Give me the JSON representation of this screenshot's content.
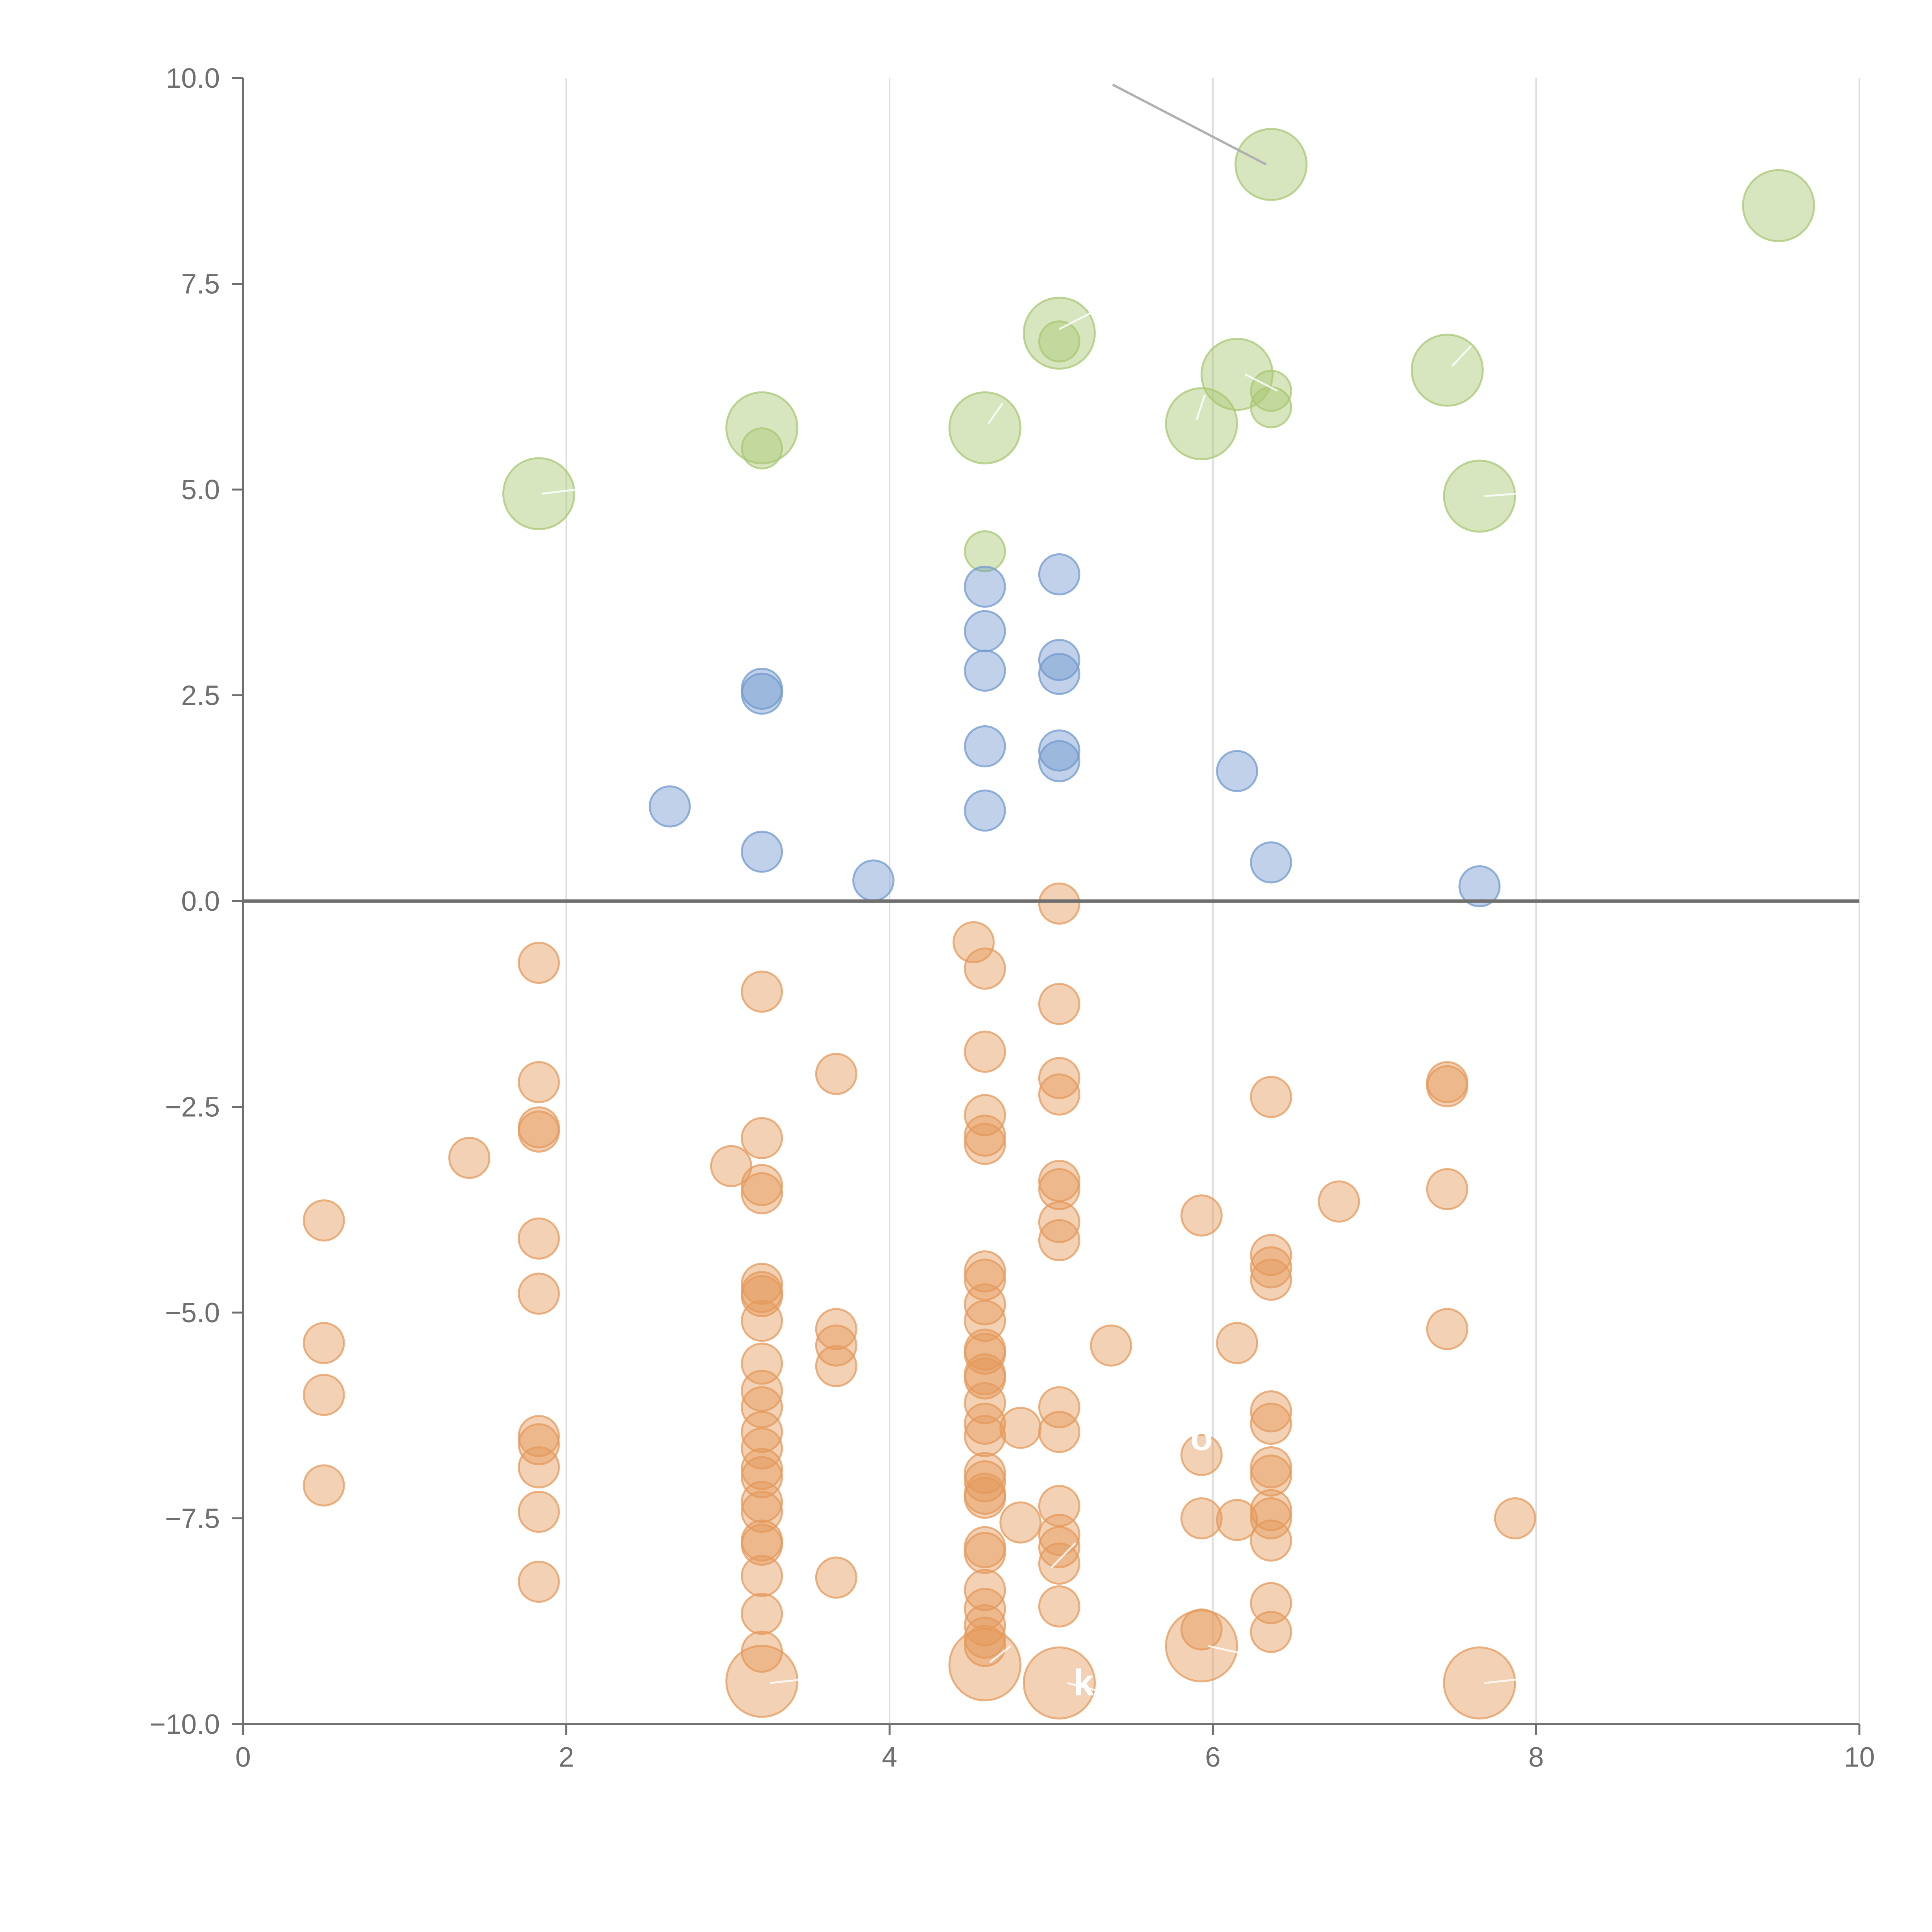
{
  "chart_data": {
    "type": "scatter",
    "title": "",
    "xlabel": "",
    "ylabel": "",
    "xlim": [
      0,
      10
    ],
    "ylim": [
      -10,
      10
    ],
    "x_ticks": [
      "0",
      "2",
      "4",
      "6",
      "8",
      "10"
    ],
    "y_ticks": [
      "10.0",
      "7.5",
      "5.0",
      "2.5",
      "0.0",
      "−2.5",
      "−5.0",
      "−7.5",
      "−10.0"
    ],
    "grid": "vertical",
    "zero_line": 0,
    "colors": {
      "green": "#a9c774",
      "blue": "#7399cf",
      "orange": "#e59a5c",
      "axis": "#6f6f6f",
      "grid": "#dddddd",
      "connector": "#b0b0b0"
    },
    "series": [
      {
        "name": "green",
        "color": "#a9c774",
        "points": [
          {
            "x": 1.83,
            "y": 4.95,
            "s": "large"
          },
          {
            "x": 3.21,
            "y": 5.75,
            "s": "large"
          },
          {
            "x": 3.21,
            "y": 5.5,
            "s": "small"
          },
          {
            "x": 4.59,
            "y": 5.75,
            "s": "large"
          },
          {
            "x": 4.59,
            "y": 4.25,
            "s": "small"
          },
          {
            "x": 5.05,
            "y": 6.9,
            "s": "large"
          },
          {
            "x": 5.05,
            "y": 6.8,
            "s": "small"
          },
          {
            "x": 5.93,
            "y": 5.8,
            "s": "large"
          },
          {
            "x": 6.15,
            "y": 6.4,
            "s": "large"
          },
          {
            "x": 6.36,
            "y": 8.95,
            "s": "large"
          },
          {
            "x": 6.36,
            "y": 6.2,
            "s": "small"
          },
          {
            "x": 6.36,
            "y": 6.0,
            "s": "small"
          },
          {
            "x": 7.45,
            "y": 6.45,
            "s": "large"
          },
          {
            "x": 7.65,
            "y": 4.92,
            "s": "large"
          },
          {
            "x": 9.5,
            "y": 8.45,
            "s": "large"
          }
        ]
      },
      {
        "name": "blue",
        "color": "#7399cf",
        "points": [
          {
            "x": 2.64,
            "y": 1.15,
            "s": "small"
          },
          {
            "x": 3.21,
            "y": 2.58,
            "s": "small"
          },
          {
            "x": 3.21,
            "y": 2.52,
            "s": "small"
          },
          {
            "x": 3.21,
            "y": 0.6,
            "s": "small"
          },
          {
            "x": 3.9,
            "y": 0.25,
            "s": "small"
          },
          {
            "x": 4.59,
            "y": 3.82,
            "s": "small"
          },
          {
            "x": 4.59,
            "y": 3.28,
            "s": "small"
          },
          {
            "x": 4.59,
            "y": 2.8,
            "s": "small"
          },
          {
            "x": 4.59,
            "y": 1.88,
            "s": "small"
          },
          {
            "x": 4.59,
            "y": 1.1,
            "s": "small"
          },
          {
            "x": 5.05,
            "y": 3.97,
            "s": "small"
          },
          {
            "x": 5.05,
            "y": 2.93,
            "s": "small"
          },
          {
            "x": 5.05,
            "y": 2.76,
            "s": "small"
          },
          {
            "x": 5.05,
            "y": 1.83,
            "s": "small"
          },
          {
            "x": 5.05,
            "y": 1.7,
            "s": "small"
          },
          {
            "x": 6.15,
            "y": 1.58,
            "s": "small"
          },
          {
            "x": 6.36,
            "y": 0.47,
            "s": "small"
          },
          {
            "x": 7.65,
            "y": 0.18,
            "s": "small"
          }
        ]
      },
      {
        "name": "orange",
        "color": "#e59a5c",
        "points": [
          {
            "x": 0.5,
            "y": -3.88,
            "s": "small"
          },
          {
            "x": 0.5,
            "y": -5.37,
            "s": "small"
          },
          {
            "x": 0.5,
            "y": -6.0,
            "s": "small"
          },
          {
            "x": 0.5,
            "y": -7.1,
            "s": "small"
          },
          {
            "x": 1.4,
            "y": -3.12,
            "s": "small"
          },
          {
            "x": 1.83,
            "y": -0.75,
            "s": "small"
          },
          {
            "x": 1.83,
            "y": -2.2,
            "s": "small"
          },
          {
            "x": 1.83,
            "y": -2.75,
            "s": "small"
          },
          {
            "x": 1.83,
            "y": -2.8,
            "s": "small"
          },
          {
            "x": 1.83,
            "y": -4.1,
            "s": "small"
          },
          {
            "x": 1.83,
            "y": -4.77,
            "s": "small"
          },
          {
            "x": 1.83,
            "y": -6.5,
            "s": "small"
          },
          {
            "x": 1.83,
            "y": -6.6,
            "s": "small"
          },
          {
            "x": 1.83,
            "y": -6.88,
            "s": "small"
          },
          {
            "x": 1.83,
            "y": -7.42,
            "s": "small"
          },
          {
            "x": 1.83,
            "y": -8.27,
            "s": "small"
          },
          {
            "x": 3.02,
            "y": -3.22,
            "s": "small"
          },
          {
            "x": 3.21,
            "y": -1.1,
            "s": "small"
          },
          {
            "x": 3.21,
            "y": -2.88,
            "s": "small"
          },
          {
            "x": 3.21,
            "y": -3.45,
            "s": "small"
          },
          {
            "x": 3.21,
            "y": -3.55,
            "s": "small"
          },
          {
            "x": 3.21,
            "y": -4.65,
            "s": "small"
          },
          {
            "x": 3.21,
            "y": -4.75,
            "s": "small"
          },
          {
            "x": 3.21,
            "y": -4.8,
            "s": "small"
          },
          {
            "x": 3.21,
            "y": -5.1,
            "s": "small"
          },
          {
            "x": 3.21,
            "y": -5.62,
            "s": "small"
          },
          {
            "x": 3.21,
            "y": -5.95,
            "s": "small"
          },
          {
            "x": 3.21,
            "y": -6.15,
            "s": "small"
          },
          {
            "x": 3.21,
            "y": -6.45,
            "s": "small"
          },
          {
            "x": 3.21,
            "y": -6.65,
            "s": "small"
          },
          {
            "x": 3.21,
            "y": -6.9,
            "s": "small"
          },
          {
            "x": 3.21,
            "y": -7.0,
            "s": "small"
          },
          {
            "x": 3.21,
            "y": -7.3,
            "s": "small"
          },
          {
            "x": 3.21,
            "y": -7.42,
            "s": "small"
          },
          {
            "x": 3.21,
            "y": -7.77,
            "s": "small"
          },
          {
            "x": 3.21,
            "y": -7.82,
            "s": "small"
          },
          {
            "x": 3.21,
            "y": -8.2,
            "s": "small"
          },
          {
            "x": 3.21,
            "y": -8.66,
            "s": "small"
          },
          {
            "x": 3.21,
            "y": -9.12,
            "s": "small"
          },
          {
            "x": 3.21,
            "y": -9.48,
            "s": "large"
          },
          {
            "x": 3.67,
            "y": -2.1,
            "s": "small"
          },
          {
            "x": 3.67,
            "y": -5.2,
            "s": "small"
          },
          {
            "x": 3.67,
            "y": -5.4,
            "s": "small"
          },
          {
            "x": 3.67,
            "y": -5.65,
            "s": "small"
          },
          {
            "x": 3.67,
            "y": -8.22,
            "s": "small"
          },
          {
            "x": 4.52,
            "y": -0.5,
            "s": "small"
          },
          {
            "x": 4.59,
            "y": -0.82,
            "s": "small"
          },
          {
            "x": 4.59,
            "y": -1.83,
            "s": "small"
          },
          {
            "x": 4.59,
            "y": -2.6,
            "s": "small"
          },
          {
            "x": 4.59,
            "y": -2.85,
            "s": "small"
          },
          {
            "x": 4.59,
            "y": -2.95,
            "s": "small"
          },
          {
            "x": 4.59,
            "y": -4.5,
            "s": "small"
          },
          {
            "x": 4.59,
            "y": -4.6,
            "s": "small"
          },
          {
            "x": 4.59,
            "y": -4.9,
            "s": "small"
          },
          {
            "x": 4.59,
            "y": -5.1,
            "s": "small"
          },
          {
            "x": 4.59,
            "y": -5.45,
            "s": "small"
          },
          {
            "x": 4.59,
            "y": -5.5,
            "s": "small"
          },
          {
            "x": 4.59,
            "y": -5.75,
            "s": "small"
          },
          {
            "x": 4.59,
            "y": -5.8,
            "s": "small"
          },
          {
            "x": 4.59,
            "y": -6.1,
            "s": "small"
          },
          {
            "x": 4.59,
            "y": -6.35,
            "s": "small"
          },
          {
            "x": 4.59,
            "y": -6.5,
            "s": "small"
          },
          {
            "x": 4.59,
            "y": -6.95,
            "s": "small"
          },
          {
            "x": 4.59,
            "y": -7.05,
            "s": "small"
          },
          {
            "x": 4.59,
            "y": -7.2,
            "s": "small"
          },
          {
            "x": 4.59,
            "y": -7.25,
            "s": "small"
          },
          {
            "x": 4.59,
            "y": -7.85,
            "s": "small"
          },
          {
            "x": 4.59,
            "y": -7.92,
            "s": "small"
          },
          {
            "x": 4.59,
            "y": -8.37,
            "s": "small"
          },
          {
            "x": 4.59,
            "y": -8.6,
            "s": "small"
          },
          {
            "x": 4.59,
            "y": -8.8,
            "s": "small"
          },
          {
            "x": 4.59,
            "y": -8.95,
            "s": "small"
          },
          {
            "x": 4.59,
            "y": -9.05,
            "s": "small"
          },
          {
            "x": 4.59,
            "y": -9.28,
            "s": "large"
          },
          {
            "x": 4.81,
            "y": -6.4,
            "s": "small"
          },
          {
            "x": 4.81,
            "y": -7.55,
            "s": "small"
          },
          {
            "x": 5.05,
            "y": -0.03,
            "s": "small"
          },
          {
            "x": 5.05,
            "y": -1.25,
            "s": "small"
          },
          {
            "x": 5.05,
            "y": -2.15,
            "s": "small"
          },
          {
            "x": 5.05,
            "y": -2.35,
            "s": "small"
          },
          {
            "x": 5.05,
            "y": -3.4,
            "s": "small"
          },
          {
            "x": 5.05,
            "y": -3.5,
            "s": "small"
          },
          {
            "x": 5.05,
            "y": -3.9,
            "s": "small"
          },
          {
            "x": 5.05,
            "y": -4.12,
            "s": "small"
          },
          {
            "x": 5.05,
            "y": -6.15,
            "s": "small"
          },
          {
            "x": 5.05,
            "y": -6.45,
            "s": "small"
          },
          {
            "x": 5.05,
            "y": -7.35,
            "s": "small"
          },
          {
            "x": 5.05,
            "y": -7.7,
            "s": "small"
          },
          {
            "x": 5.05,
            "y": -7.85,
            "s": "small"
          },
          {
            "x": 5.05,
            "y": -8.05,
            "s": "small"
          },
          {
            "x": 5.05,
            "y": -8.57,
            "s": "small"
          },
          {
            "x": 5.05,
            "y": -9.5,
            "s": "large"
          },
          {
            "x": 5.37,
            "y": -5.4,
            "s": "small"
          },
          {
            "x": 5.93,
            "y": -3.82,
            "s": "small"
          },
          {
            "x": 5.93,
            "y": -6.73,
            "s": "small"
          },
          {
            "x": 5.93,
            "y": -7.5,
            "s": "small"
          },
          {
            "x": 5.93,
            "y": -8.85,
            "s": "small"
          },
          {
            "x": 5.93,
            "y": -9.05,
            "s": "large"
          },
          {
            "x": 6.15,
            "y": -5.37,
            "s": "small"
          },
          {
            "x": 6.15,
            "y": -7.52,
            "s": "small"
          },
          {
            "x": 6.36,
            "y": -2.38,
            "s": "small"
          },
          {
            "x": 6.36,
            "y": -4.3,
            "s": "small"
          },
          {
            "x": 6.36,
            "y": -4.45,
            "s": "small"
          },
          {
            "x": 6.36,
            "y": -4.6,
            "s": "small"
          },
          {
            "x": 6.36,
            "y": -6.2,
            "s": "small"
          },
          {
            "x": 6.36,
            "y": -6.35,
            "s": "small"
          },
          {
            "x": 6.36,
            "y": -6.88,
            "s": "small"
          },
          {
            "x": 6.36,
            "y": -6.98,
            "s": "small"
          },
          {
            "x": 6.36,
            "y": -7.4,
            "s": "small"
          },
          {
            "x": 6.36,
            "y": -7.5,
            "s": "small"
          },
          {
            "x": 6.36,
            "y": -7.77,
            "s": "small"
          },
          {
            "x": 6.36,
            "y": -8.53,
            "s": "small"
          },
          {
            "x": 6.36,
            "y": -8.88,
            "s": "small"
          },
          {
            "x": 6.78,
            "y": -3.65,
            "s": "small"
          },
          {
            "x": 7.45,
            "y": -2.2,
            "s": "small"
          },
          {
            "x": 7.45,
            "y": -2.25,
            "s": "small"
          },
          {
            "x": 7.45,
            "y": -3.5,
            "s": "small"
          },
          {
            "x": 7.45,
            "y": -5.2,
            "s": "small"
          },
          {
            "x": 7.65,
            "y": -9.5,
            "s": "large"
          },
          {
            "x": 7.87,
            "y": -7.5,
            "s": "small"
          }
        ]
      }
    ],
    "annotations": [
      {
        "text": "o",
        "x": 5.93,
        "y": -6.67
      },
      {
        "text": "k",
        "x": 5.2,
        "y": -9.65
      }
    ]
  }
}
